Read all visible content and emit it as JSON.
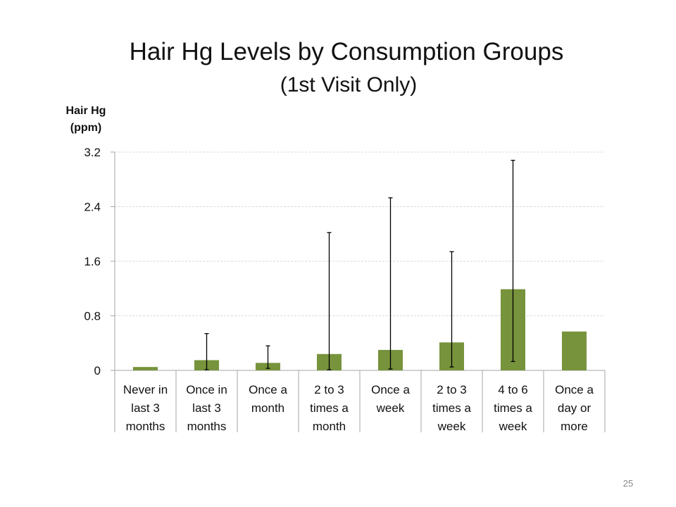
{
  "page_number": "25",
  "chart_data": {
    "type": "bar",
    "title": "Hair Hg Levels by Consumption Groups",
    "subtitle": "(1st Visit Only)",
    "ylabel": [
      "Hair Hg",
      "(ppm)"
    ],
    "xlabel": "",
    "ylim": [
      0,
      3.2
    ],
    "yticks": [
      "0",
      "0.8",
      "1.6",
      "2.4",
      "3.2"
    ],
    "grid": true,
    "legend": "none",
    "categories": [
      [
        "Never in",
        "last 3",
        "months"
      ],
      [
        "Once in",
        "last 3",
        "months"
      ],
      [
        "Once a",
        "month"
      ],
      [
        "2 to 3",
        "times a",
        "month"
      ],
      [
        "Once a",
        "week"
      ],
      [
        "2 to 3",
        "times a",
        "week"
      ],
      [
        "4 to 6",
        "times a",
        "week"
      ],
      [
        "Once a",
        "day or",
        "more"
      ]
    ],
    "values": [
      0.05,
      0.15,
      0.11,
      0.24,
      0.3,
      0.41,
      1.19,
      0.57
    ],
    "error_low": [
      null,
      0.01,
      0.03,
      0.01,
      0.02,
      0.05,
      0.13,
      null
    ],
    "error_high": [
      null,
      0.54,
      0.36,
      2.02,
      2.53,
      1.74,
      3.08,
      null
    ],
    "colors": {
      "bar": "#77933c",
      "axis": "#a6a6a6",
      "grid": "#d9d9d9",
      "error": "#000000"
    }
  }
}
